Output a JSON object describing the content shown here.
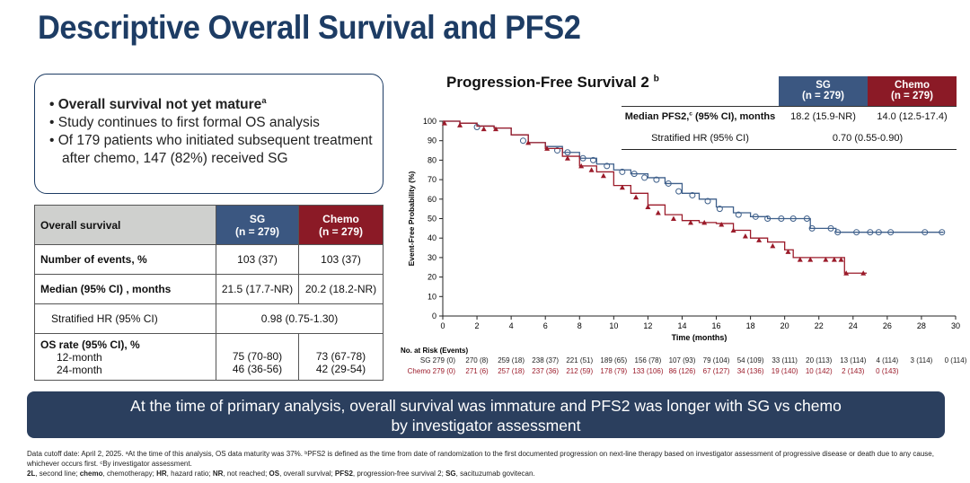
{
  "title": "Descriptive Overall Survival and PFS2",
  "bullets": [
    {
      "text": "Overall survival not yet mature",
      "sup": "a"
    },
    {
      "text": "Study continues to first formal OS analysis"
    },
    {
      "text": "Of 179 patients who initiated subsequent treatment after chemo, 147 (82%) received SG"
    }
  ],
  "os_table": {
    "header": [
      "Overall survival",
      "SG",
      "(n = 279)",
      "Chemo",
      "(n = 279)"
    ],
    "rows": [
      [
        "Number of events, %",
        "103 (37)",
        "103 (37)"
      ],
      [
        "Median (95% CI) , months",
        "21.5 (17.7-NR)",
        "20.2 (18.2-NR)"
      ],
      [
        "Stratified HR (95% CI)",
        "0.98 (0.75-1.30)"
      ],
      [
        "OS rate (95% CI), %",
        "12-month",
        "24-month",
        "75 (70-80)",
        "46 (36-56)",
        "73 (67-78)",
        "42 (29-54)"
      ]
    ]
  },
  "pfs2_table": {
    "sg_header": [
      "SG",
      "(n = 279)"
    ],
    "chemo_header": [
      "Chemo",
      "(n = 279)"
    ],
    "median_label": "Median PFS2,",
    "median_sup": "c",
    "median_label_rest": " (95% CI), months",
    "median_sg": "18.2 (15.9-NR)",
    "median_chemo": "14.0 (12.5-17.4)",
    "hr_label": "Stratified HR (95% CI)",
    "hr_value": "0.70 (0.55-0.90)"
  },
  "banner": [
    "At the time of primary analysis, overall survival was immature and PFS2 was longer with SG vs chemo",
    "by investigator assessment"
  ],
  "footnotes": {
    "line1": "Data cutoff date: April 2, 2025. ᵃAt the time of this analysis, OS data maturity was 37%. ᵇPFS2 is defined as the time from date of randomization to the first documented progression on next-line therapy based on investigator assessment of progressive disease or death due to any cause, whichever occurs first. ᶜBy investigator assessment.",
    "abbrev": [
      [
        "2L",
        ", second line; "
      ],
      [
        "chemo",
        ", chemotherapy; "
      ],
      [
        "HR",
        ", hazard ratio; "
      ],
      [
        "NR",
        ", not reached; "
      ],
      [
        "OS",
        ", overall survival; "
      ],
      [
        "PFS2",
        ", progression-free survival 2; "
      ],
      [
        "SG",
        ", sacituzumab govitecan."
      ]
    ]
  },
  "chart_data": {
    "type": "line",
    "title": "Progression-Free Survival 2",
    "title_sup": "b",
    "xlabel": "Time (months)",
    "ylabel": "Event-Free Probability (%)",
    "xlim": [
      0,
      30
    ],
    "ylim": [
      0,
      100
    ],
    "xticks": [
      0,
      2,
      4,
      6,
      8,
      10,
      12,
      14,
      16,
      18,
      20,
      22,
      24,
      26,
      28,
      30
    ],
    "yticks": [
      0,
      10,
      20,
      30,
      40,
      50,
      60,
      70,
      80,
      90,
      100
    ],
    "grid": false,
    "colors": {
      "SG": "#3e5f8a",
      "Chemo": "#9b1b2a"
    },
    "series": [
      {
        "name": "SG",
        "marker": "circle-open",
        "steps": [
          [
            0,
            100
          ],
          [
            1,
            99
          ],
          [
            2,
            97.5
          ],
          [
            3,
            96.5
          ],
          [
            4,
            93
          ],
          [
            5,
            89
          ],
          [
            6,
            87
          ],
          [
            7,
            84
          ],
          [
            8,
            81
          ],
          [
            9,
            78
          ],
          [
            10,
            75
          ],
          [
            11,
            73
          ],
          [
            12,
            71
          ],
          [
            13,
            68
          ],
          [
            14,
            63
          ],
          [
            15,
            60
          ],
          [
            16,
            56
          ],
          [
            17,
            53
          ],
          [
            18,
            51
          ],
          [
            19,
            50
          ],
          [
            21.4,
            50
          ],
          [
            21.5,
            45
          ],
          [
            22.8,
            45
          ],
          [
            23,
            43
          ],
          [
            29.3,
            43
          ]
        ],
        "censored": [
          [
            2,
            97
          ],
          [
            4.7,
            90
          ],
          [
            6.7,
            85
          ],
          [
            7.3,
            84
          ],
          [
            8.2,
            81
          ],
          [
            8.8,
            80
          ],
          [
            9.6,
            77
          ],
          [
            10.5,
            74
          ],
          [
            11.2,
            73
          ],
          [
            11.8,
            71
          ],
          [
            12.5,
            70
          ],
          [
            13.2,
            68
          ],
          [
            13.8,
            64
          ],
          [
            14.6,
            62
          ],
          [
            15.5,
            59
          ],
          [
            16.2,
            55
          ],
          [
            17.3,
            52
          ],
          [
            18.3,
            51
          ],
          [
            19,
            50
          ],
          [
            19.8,
            50
          ],
          [
            20.5,
            50
          ],
          [
            21.3,
            50
          ],
          [
            21.6,
            45
          ],
          [
            22.7,
            45
          ],
          [
            23.1,
            43
          ],
          [
            24.2,
            43
          ],
          [
            25,
            43
          ],
          [
            25.5,
            43
          ],
          [
            26.2,
            43
          ],
          [
            28.2,
            43
          ],
          [
            29.2,
            43
          ]
        ]
      },
      {
        "name": "Chemo",
        "marker": "triangle",
        "steps": [
          [
            0,
            100
          ],
          [
            1,
            99
          ],
          [
            2,
            97.5
          ],
          [
            3,
            96.5
          ],
          [
            4,
            93
          ],
          [
            5,
            89
          ],
          [
            6,
            86
          ],
          [
            7,
            82
          ],
          [
            8,
            77
          ],
          [
            9,
            74
          ],
          [
            10,
            67
          ],
          [
            11,
            63
          ],
          [
            12,
            57
          ],
          [
            13,
            52
          ],
          [
            14,
            49
          ],
          [
            15,
            48
          ],
          [
            16,
            47.5
          ],
          [
            17,
            44
          ],
          [
            18,
            40
          ],
          [
            19,
            38
          ],
          [
            20,
            34
          ],
          [
            20.5,
            30
          ],
          [
            23.4,
            30
          ],
          [
            23.5,
            22
          ],
          [
            24.8,
            22
          ]
        ],
        "censored": [
          [
            0.1,
            99
          ],
          [
            1,
            98
          ],
          [
            2.4,
            96
          ],
          [
            3.1,
            96
          ],
          [
            5,
            89
          ],
          [
            6.1,
            86
          ],
          [
            7.3,
            81
          ],
          [
            8.1,
            77
          ],
          [
            8.7,
            75
          ],
          [
            9.4,
            72
          ],
          [
            10.5,
            66
          ],
          [
            11.3,
            61
          ],
          [
            12,
            56
          ],
          [
            12.6,
            53
          ],
          [
            13.5,
            50
          ],
          [
            14.5,
            48
          ],
          [
            15.3,
            48
          ],
          [
            16.3,
            47
          ],
          [
            17,
            44
          ],
          [
            17.7,
            41
          ],
          [
            18.5,
            39
          ],
          [
            19.3,
            36
          ],
          [
            20.2,
            33
          ],
          [
            20.9,
            29
          ],
          [
            21.5,
            29
          ],
          [
            22.4,
            29
          ],
          [
            22.9,
            29
          ],
          [
            23.3,
            29
          ],
          [
            23.6,
            22
          ],
          [
            24.6,
            22
          ]
        ]
      }
    ],
    "risk_table": {
      "label": "No. at Risk (Events)",
      "rows": [
        {
          "name": "SG",
          "values": [
            "279 (0)",
            "270 (8)",
            "259 (18)",
            "238 (37)",
            "221 (51)",
            "189 (65)",
            "156 (78)",
            "107 (93)",
            "79 (104)",
            "54 (109)",
            "33 (111)",
            "20 (113)",
            "13 (114)",
            "4 (114)",
            "3 (114)",
            "0 (114)"
          ]
        },
        {
          "name": "Chemo",
          "values": [
            "279 (0)",
            "271 (6)",
            "257 (18)",
            "237 (36)",
            "212 (59)",
            "178 (79)",
            "133 (106)",
            "86 (126)",
            "67 (127)",
            "34 (136)",
            "19 (140)",
            "10 (142)",
            "2 (143)",
            "0 (143)"
          ]
        }
      ]
    }
  }
}
